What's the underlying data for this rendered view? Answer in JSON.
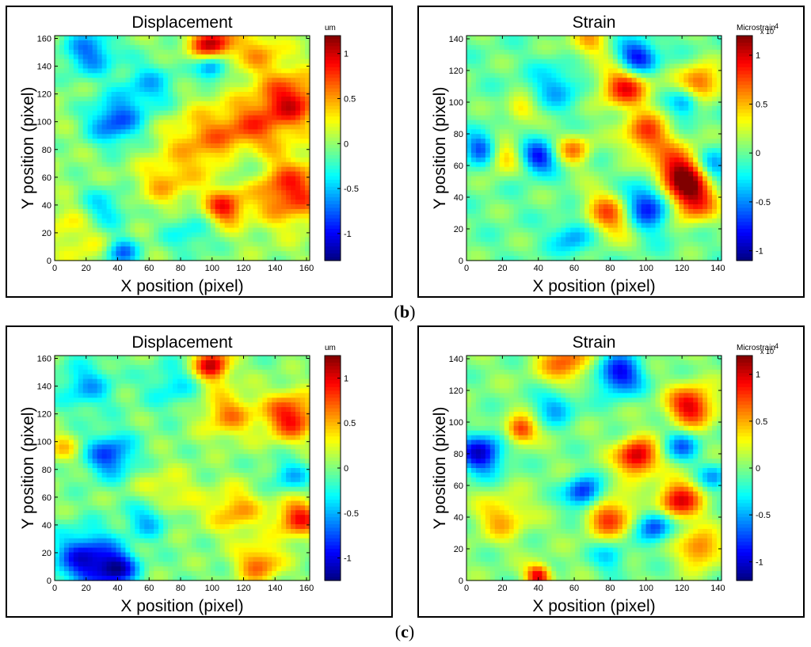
{
  "figure": {
    "caption_b": "b",
    "caption_c": "c"
  },
  "chart_data": [
    {
      "type": "heatmap",
      "title": "Displacement",
      "xlabel": "X position (pixel)",
      "ylabel": "Y position (pixel)",
      "xlim": [
        0,
        162
      ],
      "ylim": [
        0,
        162
      ],
      "xticks": [
        0,
        20,
        40,
        60,
        80,
        100,
        120,
        140,
        160
      ],
      "yticks": [
        0,
        20,
        40,
        60,
        80,
        100,
        120,
        140,
        160
      ],
      "colorbar": {
        "label": "um",
        "range": [
          -1.3,
          1.2
        ],
        "ticks": [
          -1,
          -0.5,
          0,
          0.5,
          1
        ]
      },
      "row": "b",
      "hotspots": [
        {
          "x": 100,
          "y": 155,
          "v": 1.1,
          "s": 9
        },
        {
          "x": 150,
          "y": 115,
          "v": 0.9,
          "s": 14
        },
        {
          "x": 150,
          "y": 50,
          "v": 0.85,
          "s": 16
        },
        {
          "x": 95,
          "y": 85,
          "v": 0.5,
          "s": 18
        },
        {
          "x": 108,
          "y": 38,
          "v": 0.85,
          "s": 9
        },
        {
          "x": 125,
          "y": 95,
          "v": 0.55,
          "s": 15
        },
        {
          "x": 25,
          "y": 12,
          "v": 0.3,
          "s": 14
        },
        {
          "x": 130,
          "y": 150,
          "v": 0.45,
          "s": 12
        },
        {
          "x": 70,
          "y": 55,
          "v": 0.4,
          "s": 12
        },
        {
          "x": 10,
          "y": 30,
          "v": 0.3,
          "s": 9
        },
        {
          "x": 100,
          "y": 140,
          "v": -0.9,
          "s": 7
        },
        {
          "x": 38,
          "y": 100,
          "v": -0.8,
          "s": 12
        },
        {
          "x": 22,
          "y": 150,
          "v": -0.7,
          "s": 12
        },
        {
          "x": 42,
          "y": 5,
          "v": -0.8,
          "s": 8
        },
        {
          "x": 30,
          "y": 35,
          "v": -0.5,
          "s": 12
        },
        {
          "x": 120,
          "y": 70,
          "v": -0.4,
          "s": 10
        },
        {
          "x": 60,
          "y": 125,
          "v": -0.5,
          "s": 13
        },
        {
          "x": 85,
          "y": 20,
          "v": -0.35,
          "s": 12
        }
      ]
    },
    {
      "type": "heatmap",
      "title": "Strain",
      "xlabel": "X position (pixel)",
      "ylabel": "Y position (pixel)",
      "xlim": [
        0,
        142
      ],
      "ylim": [
        0,
        142
      ],
      "xticks": [
        0,
        20,
        40,
        60,
        80,
        100,
        120,
        140
      ],
      "yticks": [
        0,
        20,
        40,
        60,
        80,
        100,
        120,
        140
      ],
      "colorbar": {
        "label": "Microstrain",
        "multiplier": "x 10",
        "exponent": "4",
        "range": [
          -1.1,
          1.2
        ],
        "ticks": [
          -1,
          -0.5,
          0,
          0.5,
          1
        ]
      },
      "row": "b",
      "hotspots": [
        {
          "x": 88,
          "y": 110,
          "v": 0.9,
          "s": 10
        },
        {
          "x": 100,
          "y": 80,
          "v": 0.8,
          "s": 9
        },
        {
          "x": 118,
          "y": 55,
          "v": 1.1,
          "s": 11
        },
        {
          "x": 125,
          "y": 38,
          "v": 0.9,
          "s": 10
        },
        {
          "x": 82,
          "y": 30,
          "v": 0.85,
          "s": 11
        },
        {
          "x": 130,
          "y": 112,
          "v": 0.8,
          "s": 8
        },
        {
          "x": 20,
          "y": 65,
          "v": 0.55,
          "s": 7
        },
        {
          "x": 60,
          "y": 70,
          "v": 0.6,
          "s": 7
        },
        {
          "x": 30,
          "y": 95,
          "v": 0.45,
          "s": 6
        },
        {
          "x": 68,
          "y": 138,
          "v": 0.5,
          "s": 8
        },
        {
          "x": 100,
          "y": 35,
          "v": -1.05,
          "s": 11
        },
        {
          "x": 95,
          "y": 128,
          "v": -0.9,
          "s": 8
        },
        {
          "x": 40,
          "y": 65,
          "v": -0.8,
          "s": 7
        },
        {
          "x": 8,
          "y": 70,
          "v": -0.7,
          "s": 7
        },
        {
          "x": 122,
          "y": 100,
          "v": -0.6,
          "s": 6
        },
        {
          "x": 60,
          "y": 15,
          "v": -0.5,
          "s": 8
        },
        {
          "x": 138,
          "y": 60,
          "v": -0.6,
          "s": 7
        },
        {
          "x": 50,
          "y": 110,
          "v": -0.4,
          "s": 10
        }
      ]
    },
    {
      "type": "heatmap",
      "title": "Displacement",
      "xlabel": "X position (pixel)",
      "ylabel": "Y position (pixel)",
      "xlim": [
        0,
        162
      ],
      "ylim": [
        0,
        162
      ],
      "xticks": [
        0,
        20,
        40,
        60,
        80,
        100,
        120,
        140,
        160
      ],
      "yticks": [
        0,
        20,
        40,
        60,
        80,
        100,
        120,
        140,
        160
      ],
      "colorbar": {
        "label": "um",
        "range": [
          -1.25,
          1.25
        ],
        "ticks": [
          -1,
          -0.5,
          0,
          0.5,
          1
        ]
      },
      "row": "c",
      "hotspots": [
        {
          "x": 100,
          "y": 155,
          "v": 1.1,
          "s": 8
        },
        {
          "x": 150,
          "y": 118,
          "v": 0.95,
          "s": 12
        },
        {
          "x": 155,
          "y": 45,
          "v": 0.9,
          "s": 10
        },
        {
          "x": 130,
          "y": 12,
          "v": 0.7,
          "s": 10
        },
        {
          "x": 115,
          "y": 50,
          "v": 0.55,
          "s": 12
        },
        {
          "x": 110,
          "y": 120,
          "v": 0.6,
          "s": 12
        },
        {
          "x": 70,
          "y": 60,
          "v": 0.35,
          "s": 14
        },
        {
          "x": 5,
          "y": 95,
          "v": 0.4,
          "s": 8
        },
        {
          "x": 20,
          "y": 15,
          "v": -1.0,
          "s": 14
        },
        {
          "x": 40,
          "y": 8,
          "v": -0.9,
          "s": 9
        },
        {
          "x": 35,
          "y": 90,
          "v": -0.8,
          "s": 11
        },
        {
          "x": 60,
          "y": 45,
          "v": -0.6,
          "s": 10
        },
        {
          "x": 150,
          "y": 75,
          "v": -0.45,
          "s": 9
        },
        {
          "x": 20,
          "y": 140,
          "v": -0.5,
          "s": 12
        },
        {
          "x": 75,
          "y": 140,
          "v": -0.35,
          "s": 12
        }
      ]
    },
    {
      "type": "heatmap",
      "title": "Strain",
      "xlabel": "X position (pixel)",
      "ylabel": "Y position (pixel)",
      "xlim": [
        0,
        142
      ],
      "ylim": [
        0,
        142
      ],
      "xticks": [
        0,
        20,
        40,
        60,
        80,
        100,
        120,
        140
      ],
      "yticks": [
        0,
        20,
        40,
        60,
        80,
        100,
        120,
        140
      ],
      "colorbar": {
        "label": "Microstrain",
        "multiplier": "x 10",
        "exponent": "4",
        "range": [
          -1.2,
          1.2
        ],
        "ticks": [
          -1,
          -0.5,
          0,
          0.5,
          1
        ]
      },
      "row": "c",
      "hotspots": [
        {
          "x": 95,
          "y": 78,
          "v": 1.1,
          "s": 8
        },
        {
          "x": 125,
          "y": 110,
          "v": 1.0,
          "s": 9
        },
        {
          "x": 118,
          "y": 50,
          "v": 0.95,
          "s": 9
        },
        {
          "x": 40,
          "y": 3,
          "v": 1.0,
          "s": 5
        },
        {
          "x": 30,
          "y": 95,
          "v": 0.85,
          "s": 6
        },
        {
          "x": 80,
          "y": 40,
          "v": 0.8,
          "s": 9
        },
        {
          "x": 55,
          "y": 138,
          "v": 0.7,
          "s": 10
        },
        {
          "x": 130,
          "y": 20,
          "v": 0.7,
          "s": 8
        },
        {
          "x": 20,
          "y": 40,
          "v": 0.5,
          "s": 10
        },
        {
          "x": 8,
          "y": 80,
          "v": -1.0,
          "s": 9
        },
        {
          "x": 65,
          "y": 55,
          "v": -0.9,
          "s": 7
        },
        {
          "x": 85,
          "y": 130,
          "v": -0.95,
          "s": 9
        },
        {
          "x": 105,
          "y": 35,
          "v": -0.85,
          "s": 7
        },
        {
          "x": 120,
          "y": 85,
          "v": -0.6,
          "s": 7
        },
        {
          "x": 138,
          "y": 65,
          "v": -0.5,
          "s": 6
        },
        {
          "x": 50,
          "y": 110,
          "v": -0.5,
          "s": 8
        },
        {
          "x": 80,
          "y": 15,
          "v": -0.4,
          "s": 7
        }
      ]
    }
  ]
}
